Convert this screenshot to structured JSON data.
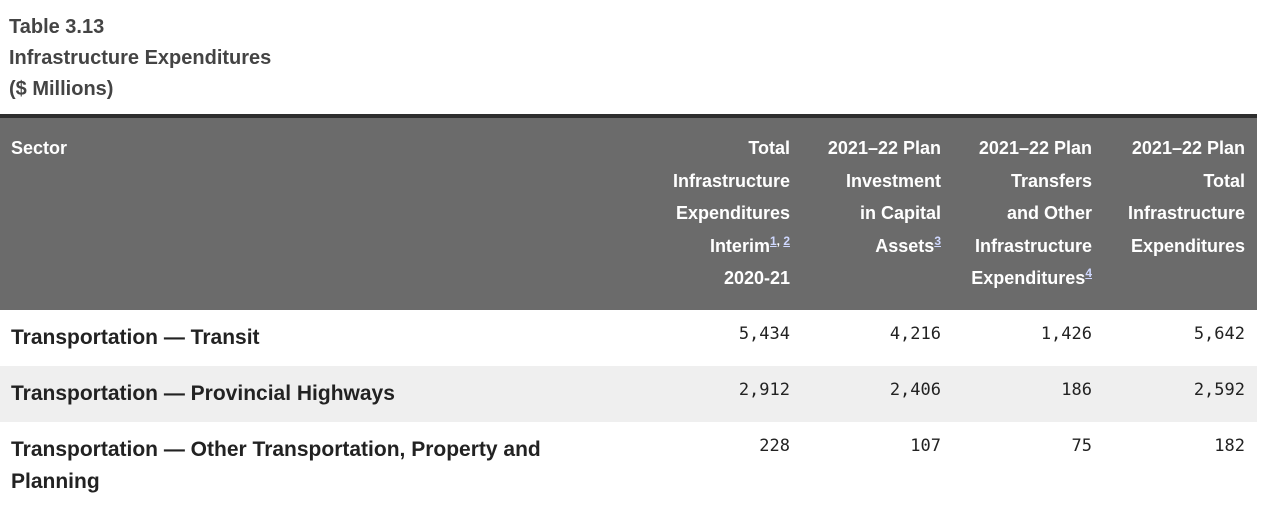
{
  "caption": {
    "line1": "Table 3.13",
    "line2": "Infrastructure Expenditures",
    "line3": "($ Millions)"
  },
  "header": {
    "sector": "Sector",
    "col1": {
      "lines": [
        "Total",
        "Infrastructure",
        "Expenditures",
        "Interim"
      ],
      "notes": [
        "1",
        "2"
      ],
      "last": "2020-21"
    },
    "col2": {
      "lines": [
        "2021–22 Plan",
        "Investment",
        "in Capital",
        "Assets"
      ],
      "notes": [
        "3"
      ]
    },
    "col3": {
      "lines": [
        "2021–22 Plan",
        "Transfers",
        "and Other",
        "Infrastructure",
        "Expenditures"
      ],
      "notes": [
        "4"
      ]
    },
    "col4": {
      "lines": [
        "2021–22 Plan",
        "Total",
        "Infrastructure",
        "Expenditures"
      ]
    }
  },
  "rows": [
    {
      "sector": "Transportation — Transit",
      "values": [
        "5,434",
        "4,216",
        "1,426",
        "5,642"
      ]
    },
    {
      "sector": "Transportation — Provincial Highways",
      "values": [
        "2,912",
        "2,406",
        "186",
        "2,592"
      ]
    },
    {
      "sector": "Transportation — Other Transportation, Property and Planning",
      "values": [
        "228",
        "107",
        "75",
        "182"
      ]
    }
  ]
}
